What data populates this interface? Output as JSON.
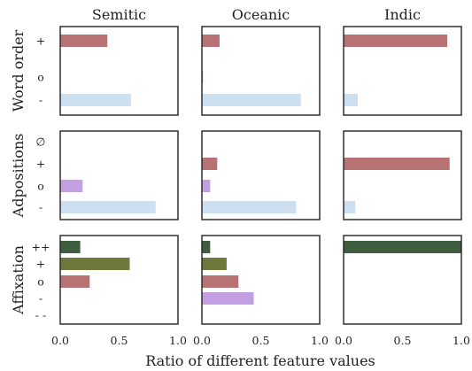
{
  "chart_data": {
    "type": "bar",
    "orientation": "horizontal",
    "xlabel": "Ratio of different feature values",
    "xlim": [
      0,
      1
    ],
    "x_ticks": [
      "0.0",
      "0.5",
      "1.0"
    ],
    "grid": false,
    "columns": [
      "Semitic",
      "Oceanic",
      "Indic"
    ],
    "colors": {
      "+": "#b97273",
      "o": "#c39ee1",
      "-": "#cde0f1",
      "++": "#3f5e3f",
      "affix_plus": "#6d7a3b"
    },
    "rows": [
      {
        "name": "Word order",
        "categories": [
          "+",
          "o",
          "-"
        ],
        "bar_colors": [
          "#b97273",
          "#c39ee1",
          "#cde0f1"
        ],
        "values": {
          "Semitic": [
            0.4,
            0.0,
            0.6
          ],
          "Oceanic": [
            0.15,
            0.01,
            0.84
          ],
          "Indic": [
            0.88,
            0.0,
            0.12
          ]
        }
      },
      {
        "name": "Adpositions",
        "categories": [
          "∅",
          "+",
          "o",
          "-"
        ],
        "bar_colors": [
          "#c8c8c8",
          "#b97273",
          "#c39ee1",
          "#cde0f1"
        ],
        "values": {
          "Semitic": [
            0.0,
            0.0,
            0.19,
            0.81
          ],
          "Oceanic": [
            0.0,
            0.13,
            0.07,
            0.8
          ],
          "Indic": [
            0.0,
            0.9,
            0.0,
            0.1
          ]
        }
      },
      {
        "name": "Affixation",
        "categories": [
          "++",
          "+",
          "o",
          "-",
          "- -"
        ],
        "bar_colors": [
          "#3f5e3f",
          "#6d7a3b",
          "#b97273",
          "#c39ee1",
          "#cde0f1"
        ],
        "values": {
          "Semitic": [
            0.17,
            0.59,
            0.25,
            0.0,
            0.0
          ],
          "Oceanic": [
            0.07,
            0.21,
            0.31,
            0.44,
            0.0
          ],
          "Indic": [
            1.0,
            0.0,
            0.0,
            0.0,
            0.0
          ]
        }
      }
    ]
  }
}
